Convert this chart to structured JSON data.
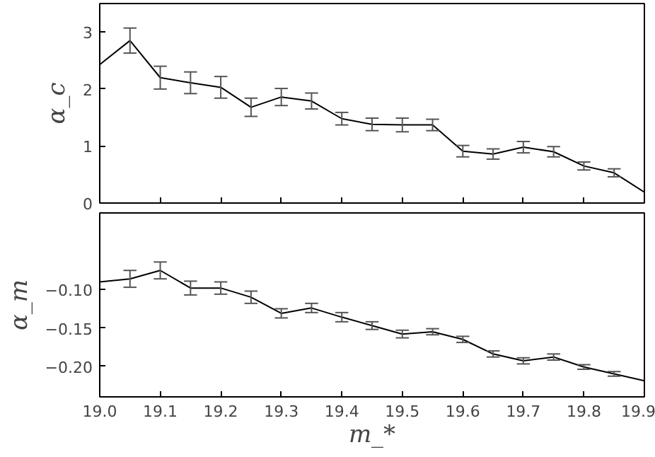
{
  "chart_data": [
    {
      "type": "line",
      "ylabel": "α_c",
      "tick_labels": "y",
      "grid": false,
      "marker": "none",
      "x": [
        19.0,
        19.05,
        19.1,
        19.15,
        19.2,
        19.25,
        19.3,
        19.35,
        19.4,
        19.45,
        19.5,
        19.55,
        19.6,
        19.65,
        19.7,
        19.75,
        19.8,
        19.85,
        19.9
      ],
      "series": [
        {
          "color": "#000000",
          "values": [
            2.43,
            2.85,
            2.2,
            2.11,
            2.03,
            1.68,
            1.86,
            1.79,
            1.48,
            1.38,
            1.37,
            1.37,
            0.91,
            0.86,
            0.98,
            0.9,
            0.65,
            0.53,
            0.19
          ],
          "errors": [
            null,
            0.22,
            0.2,
            0.19,
            0.19,
            0.16,
            0.15,
            0.14,
            0.11,
            0.11,
            0.12,
            0.1,
            0.1,
            0.09,
            0.1,
            0.09,
            0.07,
            0.07,
            null
          ]
        }
      ],
      "xlim": [
        19.0,
        19.9
      ],
      "xticks": [
        {
          "value": 19.0,
          "label": null
        },
        {
          "value": 19.1,
          "label": null
        },
        {
          "value": 19.2,
          "label": null
        },
        {
          "value": 19.3,
          "label": null
        },
        {
          "value": 19.4,
          "label": null
        },
        {
          "value": 19.5,
          "label": null
        },
        {
          "value": 19.6,
          "label": null
        },
        {
          "value": 19.7,
          "label": null
        },
        {
          "value": 19.8,
          "label": null
        },
        {
          "value": 19.9,
          "label": null
        }
      ],
      "ylim": [
        0,
        3.5
      ],
      "yticks": [
        0,
        1,
        2,
        3
      ]
    },
    {
      "type": "line",
      "xlabel": "m_*",
      "ylabel": "α_m",
      "grid": false,
      "marker": "none",
      "x": [
        19.0,
        19.05,
        19.1,
        19.15,
        19.2,
        19.25,
        19.3,
        19.35,
        19.4,
        19.45,
        19.5,
        19.55,
        19.6,
        19.65,
        19.7,
        19.75,
        19.8,
        19.85,
        19.9
      ],
      "series": [
        {
          "color": "#000000",
          "values": [
            -0.09,
            -0.086,
            -0.075,
            -0.098,
            -0.098,
            -0.11,
            -0.131,
            -0.124,
            -0.136,
            -0.147,
            -0.158,
            -0.155,
            -0.165,
            -0.184,
            -0.193,
            -0.188,
            -0.201,
            -0.21,
            -0.219
          ],
          "errors": [
            null,
            0.011,
            0.011,
            0.009,
            0.008,
            0.008,
            0.006,
            0.006,
            0.006,
            0.005,
            0.005,
            0.004,
            0.004,
            0.004,
            0.004,
            0.004,
            0.003,
            0.003,
            null
          ]
        }
      ],
      "xlim": [
        19.0,
        19.9
      ],
      "xticks": [
        {
          "value": 19.0,
          "label": "19.0"
        },
        {
          "value": 19.1,
          "label": "19.1"
        },
        {
          "value": 19.2,
          "label": "19.2"
        },
        {
          "value": 19.3,
          "label": "19.3"
        },
        {
          "value": 19.4,
          "label": "19.4"
        },
        {
          "value": 19.5,
          "label": "19.5"
        },
        {
          "value": 19.6,
          "label": "19.6"
        },
        {
          "value": 19.7,
          "label": "19.7"
        },
        {
          "value": 19.8,
          "label": "19.8"
        },
        {
          "value": 19.9,
          "label": "19.9"
        }
      ],
      "ylim": [
        -0.24,
        0
      ],
      "yticks": [
        {
          "value": -0.2,
          "label": "−0.20"
        },
        {
          "value": -0.15,
          "label": "−0.15"
        },
        {
          "value": -0.1,
          "label": "−0.10"
        }
      ]
    }
  ]
}
